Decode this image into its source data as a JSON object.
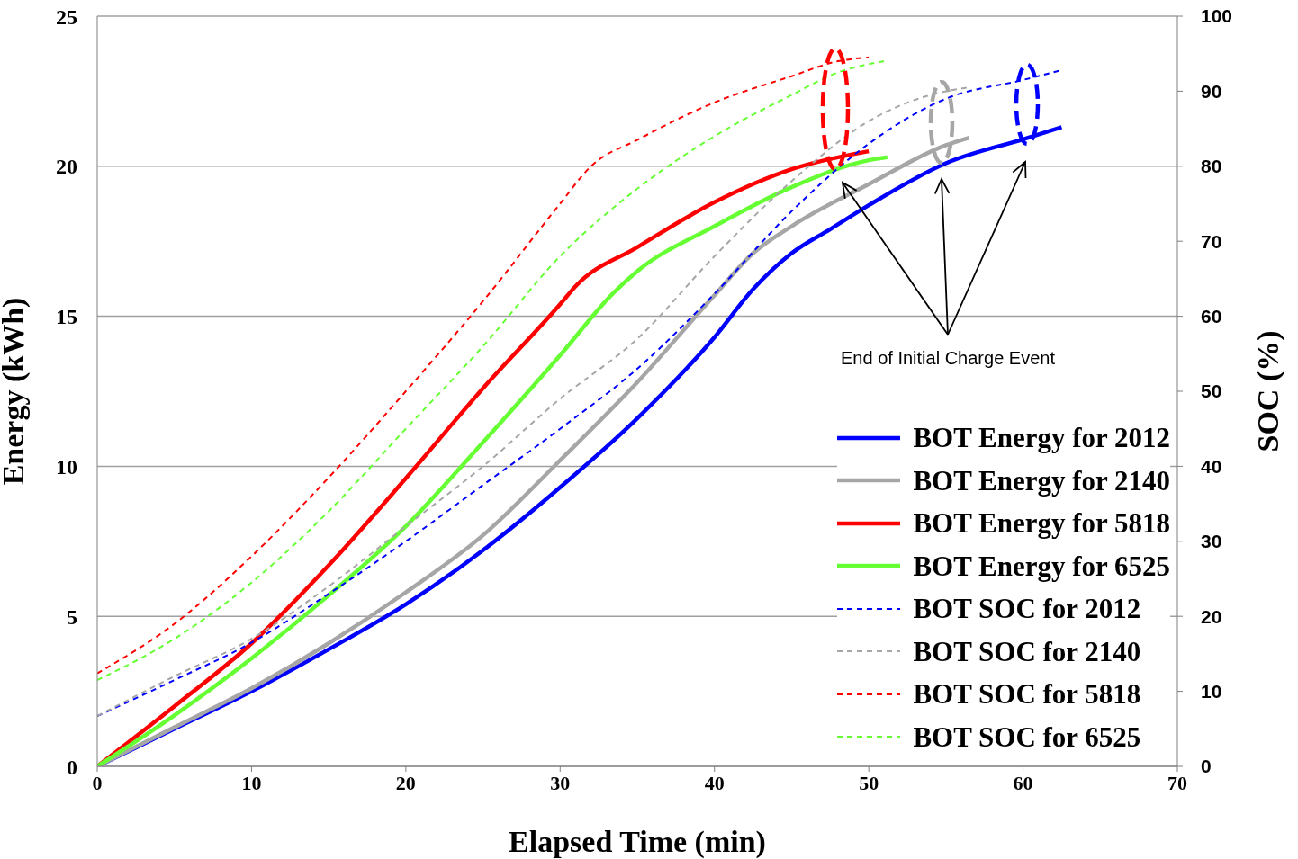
{
  "chart_data": {
    "type": "line",
    "xlabel": "Elapsed Time (min)",
    "ylabel": "Energy (kWh)",
    "y2label": "SOC (%)",
    "xlim": [
      0,
      70
    ],
    "xticks": [
      0,
      10,
      20,
      30,
      40,
      50,
      60,
      70
    ],
    "ylim": [
      0,
      25
    ],
    "yticks": [
      0,
      5,
      10,
      15,
      20,
      25
    ],
    "y2lim": [
      0,
      100
    ],
    "y2ticks": [
      0,
      10,
      20,
      30,
      40,
      50,
      60,
      70,
      80,
      90,
      100
    ],
    "grid": "y",
    "legend": "bottom right",
    "marker": "none",
    "annotations": [
      "End of Initial Charge Event"
    ],
    "series": [
      {
        "name": "BOT Energy for 2012",
        "color": "#0000ff",
        "line_style": "solid",
        "x": [
          0,
          5,
          10,
          15,
          20,
          25,
          30,
          35,
          40,
          42.5,
          45,
          47.5,
          50,
          55,
          60,
          62.5
        ],
        "values": [
          0,
          1.25,
          2.5,
          3.9,
          5.4,
          7.2,
          9.3,
          11.6,
          14.3,
          15.9,
          17.1,
          17.9,
          18.7,
          20.1,
          20.9,
          21.3
        ]
      },
      {
        "name": "BOT Energy for 2140",
        "color": "#a6a6a6",
        "line_style": "solid",
        "x": [
          0,
          5,
          10,
          15,
          20,
          25,
          30,
          35,
          40,
          42.5,
          45,
          50,
          55,
          56.5
        ],
        "values": [
          0,
          1.3,
          2.6,
          4.1,
          5.8,
          7.7,
          10.2,
          12.8,
          15.7,
          17.1,
          18,
          19.4,
          20.7,
          20.95
        ]
      },
      {
        "name": "BOT Energy for 5818",
        "color": "#ff0000",
        "line_style": "solid",
        "x": [
          0,
          5,
          10,
          15,
          20,
          25,
          30,
          31,
          35,
          40,
          45,
          50
        ],
        "values": [
          0,
          2,
          4.1,
          6.7,
          9.6,
          12.6,
          15.4,
          16,
          17.3,
          18.8,
          19.9,
          20.5
        ]
      },
      {
        "name": "BOT Energy for 6525",
        "color": "#66ff33",
        "line_style": "solid",
        "x": [
          0,
          5,
          10,
          15,
          20,
          25,
          30,
          33.5,
          35,
          40,
          45,
          50,
          51.2
        ],
        "values": [
          0,
          1.7,
          3.6,
          5.7,
          8,
          10.8,
          13.7,
          15.8,
          16.5,
          18,
          19.3,
          20.2,
          20.3
        ]
      },
      {
        "name": "BOT SOC for 2012",
        "color": "#0000ff",
        "line_style": "dashed",
        "axis": "y2",
        "x": [
          0,
          5,
          10,
          15,
          20,
          25,
          30,
          35,
          40,
          45,
          50,
          55,
          60,
          62.5
        ],
        "values": [
          6.7,
          11.5,
          16.5,
          23,
          30,
          37.5,
          45,
          53,
          63,
          74,
          83,
          89,
          91.5,
          92.8
        ]
      },
      {
        "name": "BOT SOC for 2140",
        "color": "#a6a6a6",
        "line_style": "dashed",
        "axis": "y2",
        "x": [
          0,
          5,
          10,
          15,
          20,
          25,
          30,
          35,
          40,
          45,
          50,
          55,
          56.5
        ],
        "values": [
          6.7,
          12,
          17,
          24,
          32,
          40,
          49,
          57,
          68,
          78,
          86,
          90,
          90.5
        ]
      },
      {
        "name": "BOT SOC for 5818",
        "color": "#ff0000",
        "line_style": "dashed",
        "axis": "y2",
        "x": [
          0,
          5,
          10,
          15,
          20,
          25,
          30,
          32,
          35,
          40,
          45,
          48,
          50
        ],
        "values": [
          12.4,
          19,
          28,
          38.5,
          50,
          62,
          75,
          80,
          83.5,
          88.5,
          92,
          94,
          94.5
        ]
      },
      {
        "name": "BOT SOC for 6525",
        "color": "#66ff33",
        "line_style": "dashed",
        "axis": "y2",
        "x": [
          0,
          5,
          10,
          15,
          20,
          25,
          30,
          35,
          40,
          45,
          48,
          51
        ],
        "values": [
          11.5,
          17,
          24.5,
          34,
          45,
          56,
          68,
          77,
          84,
          89.5,
          92.5,
          94
        ]
      }
    ]
  }
}
